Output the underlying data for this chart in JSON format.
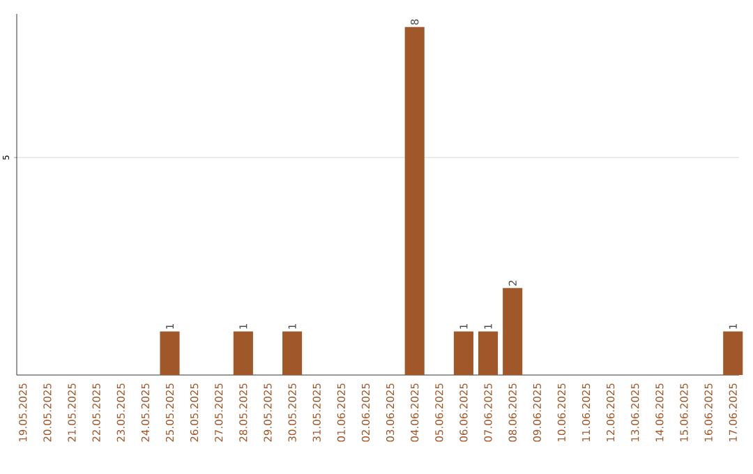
{
  "chart_data": {
    "type": "bar",
    "categories": [
      "19.05.2025",
      "20.05.2025",
      "21.05.2025",
      "22.05.2025",
      "23.05.2025",
      "24.05.2025",
      "25.05.2025",
      "26.05.2025",
      "27.05.2025",
      "28.05.2025",
      "29.05.2025",
      "30.05.2025",
      "31.05.2025",
      "01.06.2025",
      "02.06.2025",
      "03.06.2025",
      "04.06.2025",
      "05.06.2025",
      "06.06.2025",
      "07.06.2025",
      "08.06.2025",
      "09.06.2025",
      "10.06.2025",
      "11.06.2025",
      "12.06.2025",
      "13.06.2025",
      "14.06.2025",
      "15.06.2025",
      "16.06.2025",
      "17.06.2025"
    ],
    "values": [
      0,
      0,
      0,
      0,
      0,
      0,
      1,
      0,
      0,
      1,
      0,
      1,
      0,
      0,
      0,
      0,
      8,
      0,
      1,
      1,
      2,
      0,
      0,
      0,
      0,
      0,
      0,
      0,
      0,
      1
    ],
    "value_labels": [
      null,
      null,
      null,
      null,
      null,
      null,
      "1",
      null,
      null,
      "1",
      null,
      "1",
      null,
      null,
      null,
      null,
      "8",
      null,
      "1",
      "1",
      "2",
      null,
      null,
      null,
      null,
      null,
      null,
      null,
      null,
      "1"
    ],
    "color": "#a0572a",
    "ylim": [
      0,
      8.3
    ],
    "yticks": [
      5
    ],
    "grid": "y"
  }
}
